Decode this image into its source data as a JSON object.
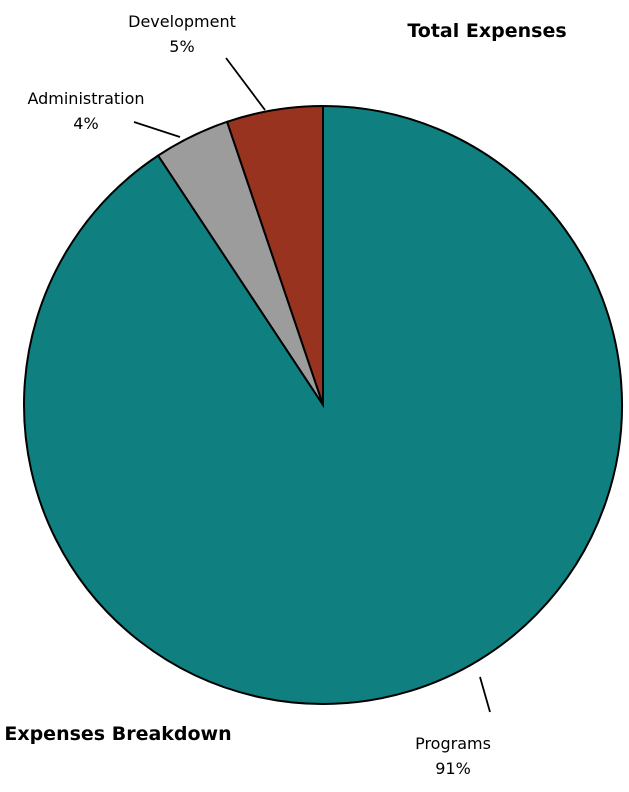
{
  "chart_data": {
    "type": "pie",
    "title": "Total Expenses",
    "footer_title": "Expenses Breakdown",
    "slices": [
      {
        "label": "Development",
        "percent_label": "5%",
        "value": 5.2,
        "color": "#983320"
      },
      {
        "label": "Administration",
        "percent_label": "4%",
        "value": 4.1,
        "color": "#9c9c9c"
      },
      {
        "label": "Programs",
        "percent_label": "91%",
        "value": 90.7,
        "color": "#107f7f"
      }
    ]
  }
}
